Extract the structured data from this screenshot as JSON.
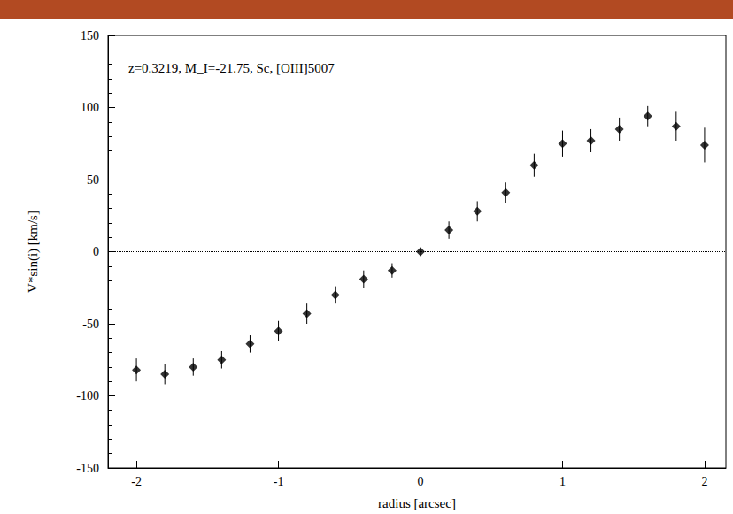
{
  "chart_data": {
    "type": "scatter",
    "title": "z=0.3219, M_I=-21.75, Sc, [OIII]5007",
    "x_label": "radius [arcsec]",
    "y_label": "V*sin(i) [km/s]",
    "x": [
      -2,
      -1.8,
      -1.6,
      -1.4,
      -1.2,
      -1,
      -0.8,
      -0.6,
      -0.4,
      -0.2,
      0,
      0.2,
      0.4,
      0.6,
      0.8,
      1,
      1.2,
      1.4,
      1.6,
      1.8,
      2
    ],
    "values": [
      -82,
      -85,
      -80,
      -75,
      -64,
      -55,
      -43,
      -30,
      -19,
      -13,
      0,
      15,
      28,
      41,
      60,
      75,
      77,
      85,
      94,
      87,
      74
    ],
    "errors": [
      8,
      7,
      6,
      6,
      6,
      7,
      7,
      6,
      6,
      5,
      3,
      6,
      7,
      7,
      8,
      9,
      8,
      8,
      7,
      10,
      12
    ],
    "color": "#000000",
    "marker": "diamond",
    "xlim": [
      -2.2,
      2.15
    ],
    "xticks": [
      -2,
      -1,
      0,
      1,
      2
    ],
    "ylim": [
      -150,
      150
    ],
    "yticks": [
      -150,
      -100,
      -50,
      0,
      50,
      100,
      150
    ],
    "hline": 0,
    "grid": false
  }
}
